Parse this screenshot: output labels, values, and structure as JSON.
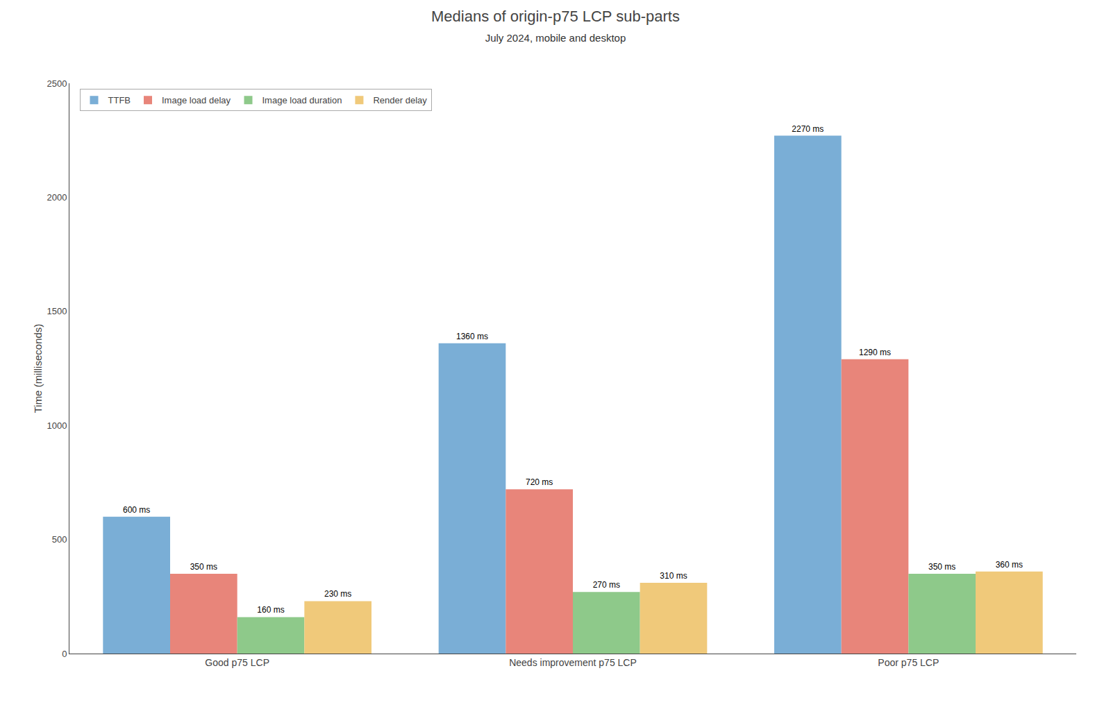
{
  "chart_data": {
    "type": "bar",
    "title": "Medians of origin-p75 LCP sub-parts",
    "subtitle": "July 2024, mobile and desktop",
    "categories": [
      "Good p75 LCP",
      "Needs improvement p75 LCP",
      "Poor p75 LCP"
    ],
    "series": [
      {
        "name": "TTFB",
        "color": "#7aaed6",
        "values": [
          600,
          1360,
          2270
        ],
        "value_labels": [
          "600 ms",
          "1360 ms",
          "2270 ms"
        ]
      },
      {
        "name": "Image load delay",
        "color": "#e8857a",
        "values": [
          350,
          720,
          1290
        ],
        "value_labels": [
          "350 ms",
          "720 ms",
          "1290 ms"
        ]
      },
      {
        "name": "Image load duration",
        "color": "#8ec98a",
        "values": [
          160,
          270,
          350
        ],
        "value_labels": [
          "160 ms",
          "270 ms",
          "350 ms"
        ]
      },
      {
        "name": "Render delay",
        "color": "#f0c97a",
        "values": [
          230,
          310,
          360
        ],
        "value_labels": [
          "230 ms",
          "310 ms",
          "360 ms"
        ]
      }
    ],
    "ylabel": "Time (milliseconds)",
    "ylim": [
      0,
      2500
    ],
    "yticks": [
      0,
      500,
      1000,
      1500,
      2000,
      2500
    ],
    "grid": false,
    "legend": "upper left",
    "data_labels": true
  }
}
